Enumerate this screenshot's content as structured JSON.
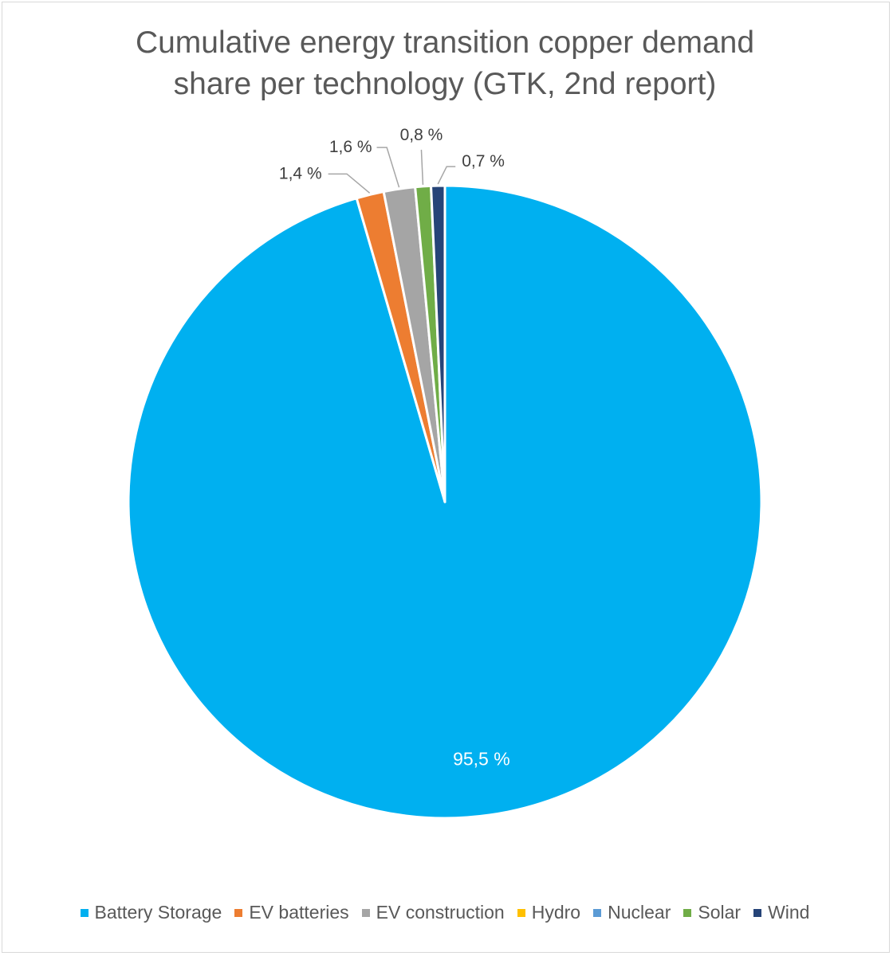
{
  "chart_data": {
    "type": "pie",
    "title_lines": [
      "Cumulative energy transition copper demand",
      "share per technology (GTK, 2nd report)"
    ],
    "legend_position": "bottom",
    "series": [
      {
        "name": "Battery Storage",
        "value": 95.5,
        "label": "95,5 %",
        "color": "#00B0F0"
      },
      {
        "name": "EV batteries",
        "value": 1.4,
        "label": "1,4 %",
        "color": "#ED7D31"
      },
      {
        "name": "EV construction",
        "value": 1.6,
        "label": "1,6 %",
        "color": "#A5A5A5"
      },
      {
        "name": "Hydro",
        "value": 0,
        "label": "",
        "color": "#FFC000"
      },
      {
        "name": "Nuclear",
        "value": 0,
        "label": "",
        "color": "#5B9BD5"
      },
      {
        "name": "Solar",
        "value": 0.8,
        "label": "0,8 %",
        "color": "#70AD47"
      },
      {
        "name": "Wind",
        "value": 0.7,
        "label": "0,7 %",
        "color": "#264478"
      }
    ]
  }
}
